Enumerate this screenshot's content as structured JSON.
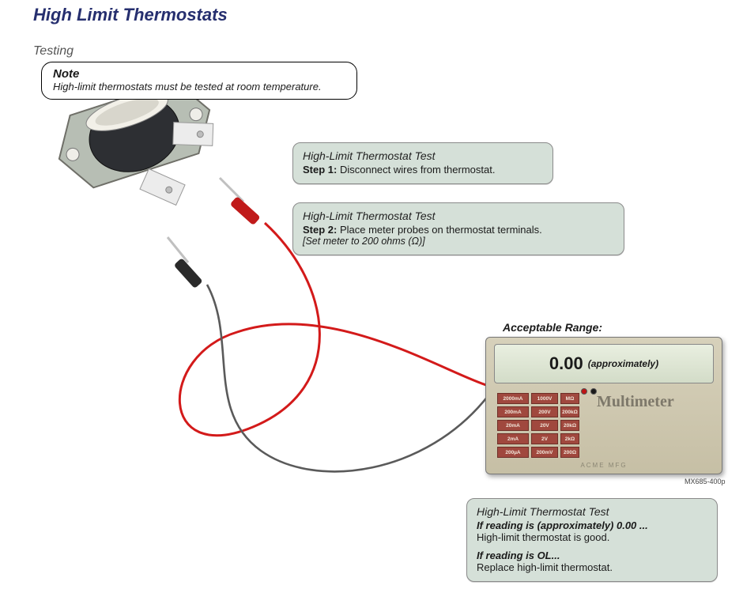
{
  "title": "High Limit Thermostats",
  "subtitle": "Testing",
  "note": {
    "heading": "Note",
    "text": "High-limit thermostats must be tested at room temperature."
  },
  "callouts": {
    "step1": {
      "header": "High-Limit Thermostat Test",
      "step_label": "Step 1:",
      "step_text": "Disconnect wires from thermostat."
    },
    "step2": {
      "header": "High-Limit Thermostat Test",
      "step_label": "Step 2:",
      "step_text": "Place meter probes on thermostat terminals.",
      "sub_text": "[Set meter to 200 ohms (Ω)]"
    },
    "result": {
      "header": "High-Limit Thermostat Test",
      "cond1_label": "If reading is (approximately) 0.00 ...",
      "cond1_text": "High-limit thermostat is good.",
      "cond2_label": "If reading is OL...",
      "cond2_text": "Replace high-limit thermostat."
    }
  },
  "acceptable_label": "Acceptable Range:",
  "meter": {
    "reading_value": "0.00",
    "reading_suffix": "(approximately)",
    "brand": "Multimeter",
    "manufacturer": "ACME MFG",
    "part_number": "MX685-400p",
    "range_cells": [
      "2000mA",
      "1000V",
      "MΩ",
      "200mA",
      "200V",
      "200kΩ",
      "20mA",
      "20V",
      "20kΩ",
      "2mA",
      "2V",
      "2kΩ",
      "200µA",
      "200mV",
      "200Ω"
    ]
  },
  "colors": {
    "title": "#262f6f",
    "callout_bg": "#d5e0d8",
    "probe_red": "#d31a1a",
    "probe_black": "#3b3b3b",
    "meter_body": "#cfc8b0",
    "range_btn": "#a0483e"
  },
  "diagram": {
    "type": "infographic",
    "components": [
      "thermostat",
      "red-probe",
      "black-probe",
      "multimeter",
      "wires"
    ],
    "wire_red": {
      "color": "#d31a1a",
      "width": 3
    },
    "wire_black": {
      "color": "#5a5a5a",
      "width": 2.5
    }
  }
}
